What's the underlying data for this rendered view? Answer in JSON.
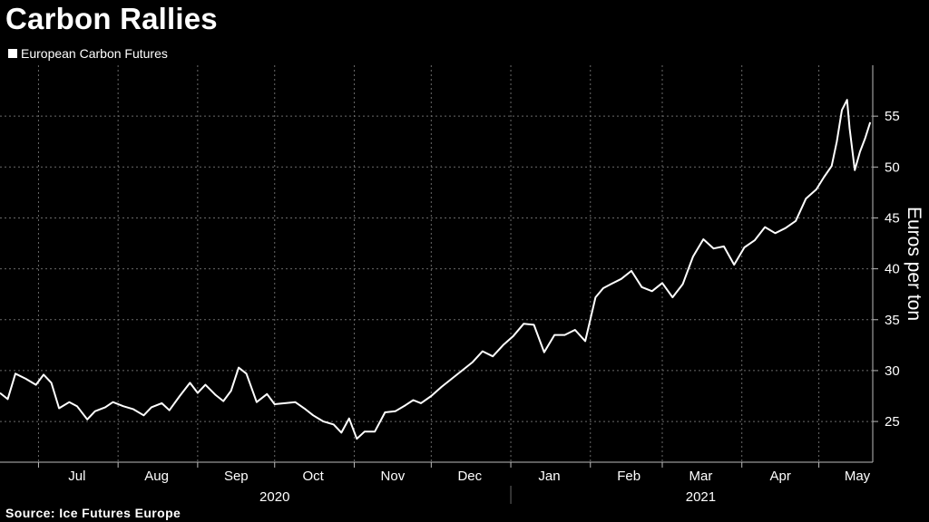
{
  "title": "Carbon Rallies",
  "legend": {
    "label": "European Carbon Futures"
  },
  "source": "Source: Ice Futures Europe",
  "chart_data": {
    "type": "line",
    "title": "Carbon Rallies",
    "ylabel": "Euros per ton",
    "ylim": [
      21,
      60
    ],
    "yticks": [
      25,
      30,
      35,
      40,
      45,
      50,
      55
    ],
    "xlim": [
      "2020-06-16",
      "2021-05-22"
    ],
    "xticks": [
      {
        "label": "Jul",
        "date": "2020-07-16"
      },
      {
        "label": "Aug",
        "date": "2020-08-16"
      },
      {
        "label": "Sep",
        "date": "2020-09-16"
      },
      {
        "label": "Oct",
        "date": "2020-10-16"
      },
      {
        "label": "Nov",
        "date": "2020-11-16"
      },
      {
        "label": "Dec",
        "date": "2020-12-16"
      },
      {
        "label": "Jan",
        "date": "2021-01-16"
      },
      {
        "label": "Feb",
        "date": "2021-02-16"
      },
      {
        "label": "Mar",
        "date": "2021-03-16"
      },
      {
        "label": "Apr",
        "date": "2021-04-16"
      },
      {
        "label": "May",
        "date": "2021-05-16"
      }
    ],
    "years": [
      {
        "label": "2020",
        "date": "2020-10-01"
      },
      {
        "label": "2021",
        "date": "2021-03-16"
      }
    ],
    "grid": true,
    "legend": "top-left",
    "color": "#ffffff",
    "series": [
      {
        "name": "European Carbon Futures",
        "points": [
          [
            "2020-06-16",
            27.8
          ],
          [
            "2020-06-19",
            27.2
          ],
          [
            "2020-06-22",
            29.7
          ],
          [
            "2020-06-26",
            29.2
          ],
          [
            "2020-06-30",
            28.6
          ],
          [
            "2020-07-03",
            29.6
          ],
          [
            "2020-07-06",
            28.8
          ],
          [
            "2020-07-09",
            26.3
          ],
          [
            "2020-07-13",
            26.9
          ],
          [
            "2020-07-16",
            26.5
          ],
          [
            "2020-07-20",
            25.2
          ],
          [
            "2020-07-23",
            26.0
          ],
          [
            "2020-07-27",
            26.4
          ],
          [
            "2020-07-30",
            26.9
          ],
          [
            "2020-08-03",
            26.5
          ],
          [
            "2020-08-07",
            26.2
          ],
          [
            "2020-08-11",
            25.6
          ],
          [
            "2020-08-14",
            26.4
          ],
          [
            "2020-08-18",
            26.8
          ],
          [
            "2020-08-21",
            26.1
          ],
          [
            "2020-08-25",
            27.5
          ],
          [
            "2020-08-29",
            28.8
          ],
          [
            "2020-09-01",
            27.8
          ],
          [
            "2020-09-04",
            28.6
          ],
          [
            "2020-09-08",
            27.6
          ],
          [
            "2020-09-11",
            27.0
          ],
          [
            "2020-09-14",
            28.0
          ],
          [
            "2020-09-17",
            30.3
          ],
          [
            "2020-09-20",
            29.7
          ],
          [
            "2020-09-24",
            26.9
          ],
          [
            "2020-09-28",
            27.7
          ],
          [
            "2020-10-01",
            26.7
          ],
          [
            "2020-10-05",
            26.8
          ],
          [
            "2020-10-09",
            26.9
          ],
          [
            "2020-10-13",
            26.2
          ],
          [
            "2020-10-16",
            25.6
          ],
          [
            "2020-10-20",
            25.0
          ],
          [
            "2020-10-24",
            24.7
          ],
          [
            "2020-10-27",
            23.9
          ],
          [
            "2020-10-30",
            25.3
          ],
          [
            "2020-11-02",
            23.3
          ],
          [
            "2020-11-05",
            24.0
          ],
          [
            "2020-11-09",
            24.0
          ],
          [
            "2020-11-13",
            25.9
          ],
          [
            "2020-11-17",
            26.0
          ],
          [
            "2020-11-21",
            26.6
          ],
          [
            "2020-11-24",
            27.1
          ],
          [
            "2020-11-27",
            26.8
          ],
          [
            "2020-12-01",
            27.5
          ],
          [
            "2020-12-05",
            28.4
          ],
          [
            "2020-12-09",
            29.2
          ],
          [
            "2020-12-13",
            30.0
          ],
          [
            "2020-12-17",
            30.8
          ],
          [
            "2020-12-21",
            31.9
          ],
          [
            "2020-12-25",
            31.4
          ],
          [
            "2020-12-29",
            32.5
          ],
          [
            "2021-01-02",
            33.4
          ],
          [
            "2021-01-06",
            34.6
          ],
          [
            "2021-01-10",
            34.5
          ],
          [
            "2021-01-14",
            31.8
          ],
          [
            "2021-01-18",
            33.5
          ],
          [
            "2021-01-22",
            33.5
          ],
          [
            "2021-01-26",
            34.0
          ],
          [
            "2021-01-30",
            32.9
          ],
          [
            "2021-02-03",
            37.2
          ],
          [
            "2021-02-06",
            38.1
          ],
          [
            "2021-02-09",
            38.5
          ],
          [
            "2021-02-13",
            39.0
          ],
          [
            "2021-02-17",
            39.8
          ],
          [
            "2021-02-21",
            38.2
          ],
          [
            "2021-02-25",
            37.8
          ],
          [
            "2021-03-01",
            38.6
          ],
          [
            "2021-03-05",
            37.2
          ],
          [
            "2021-03-09",
            38.5
          ],
          [
            "2021-03-13",
            41.2
          ],
          [
            "2021-03-17",
            42.9
          ],
          [
            "2021-03-21",
            42.0
          ],
          [
            "2021-03-25",
            42.2
          ],
          [
            "2021-03-29",
            40.4
          ],
          [
            "2021-04-02",
            42.1
          ],
          [
            "2021-04-06",
            42.8
          ],
          [
            "2021-04-10",
            44.1
          ],
          [
            "2021-04-14",
            43.5
          ],
          [
            "2021-04-18",
            44.0
          ],
          [
            "2021-04-22",
            44.7
          ],
          [
            "2021-04-26",
            46.9
          ],
          [
            "2021-04-30",
            47.8
          ],
          [
            "2021-05-03",
            49.0
          ],
          [
            "2021-05-06",
            50.1
          ],
          [
            "2021-05-08",
            52.5
          ],
          [
            "2021-05-10",
            55.6
          ],
          [
            "2021-05-12",
            56.6
          ],
          [
            "2021-05-13",
            53.8
          ],
          [
            "2021-05-15",
            49.7
          ],
          [
            "2021-05-17",
            51.5
          ],
          [
            "2021-05-19",
            52.8
          ],
          [
            "2021-05-21",
            54.4
          ]
        ]
      }
    ]
  }
}
